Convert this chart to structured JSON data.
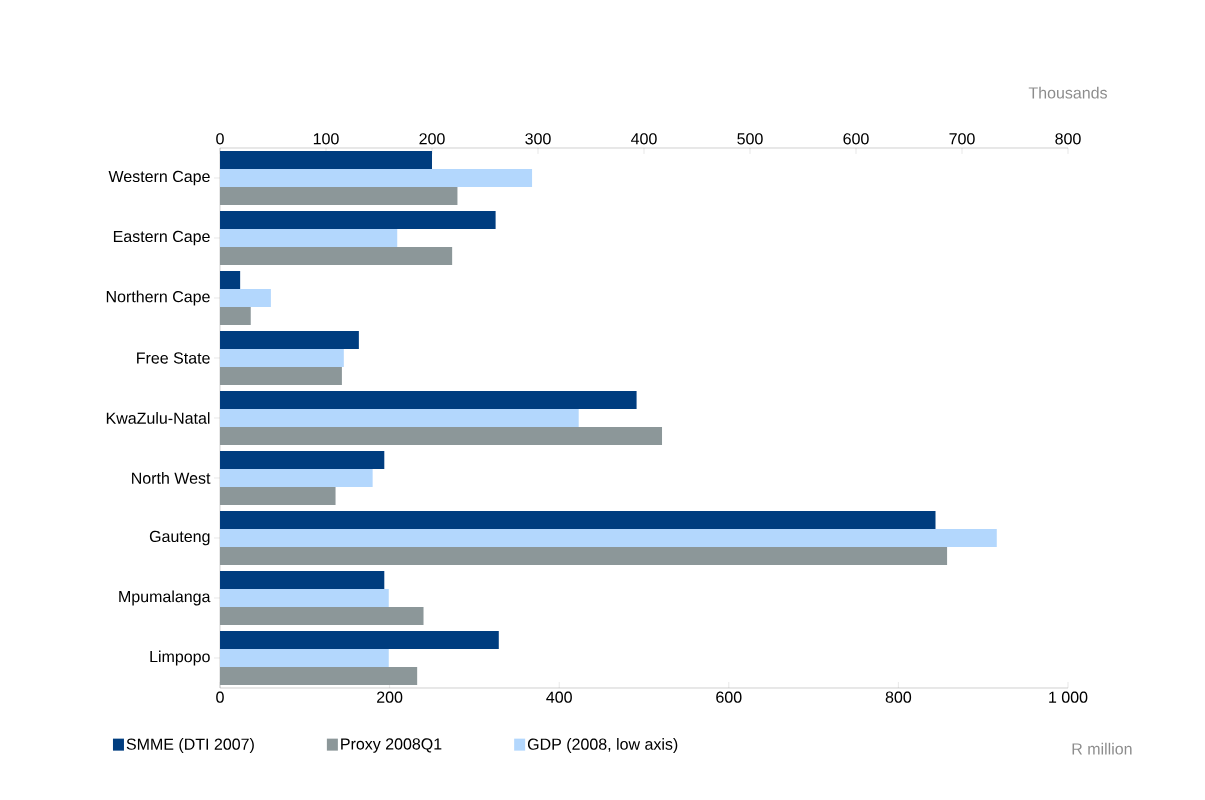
{
  "chart_data": {
    "type": "bar",
    "orientation": "horizontal",
    "xlabel": "R million",
    "x2label": "Thousands",
    "categories": [
      "Western Cape",
      "Eastern Cape",
      "Northern Cape",
      "Free State",
      "KwaZulu-Natal",
      "North West",
      "Gauteng",
      "Mpumalanga",
      "Limpopo"
    ],
    "series": [
      {
        "name": "SMME (DTI 2007)",
        "color": "#003d7f",
        "axis": "x2",
        "values": [
          200,
          260,
          19,
          131,
          393,
          155,
          675,
          155,
          263
        ]
      },
      {
        "name": "Proxy 2008Q1",
        "color": "#8c9799",
        "axis": "x2",
        "values": [
          224,
          219,
          29,
          115,
          417,
          109,
          686,
          192,
          186
        ]
      },
      {
        "name": "GDP (2008, low axis)",
        "color": "#b3d7fd",
        "values": [
          368,
          209,
          60,
          146,
          423,
          180,
          916,
          199,
          199
        ]
      }
    ],
    "xlim": [
      0,
      1000
    ],
    "xticks": [
      0,
      200,
      400,
      600,
      800,
      {
        "value": 1000,
        "label": "1 000"
      }
    ],
    "x2lim": [
      0,
      800
    ],
    "x2ticks": [
      0,
      100,
      200,
      300,
      400,
      500,
      600,
      700,
      800
    ],
    "legend": "bottom",
    "grid": false
  }
}
